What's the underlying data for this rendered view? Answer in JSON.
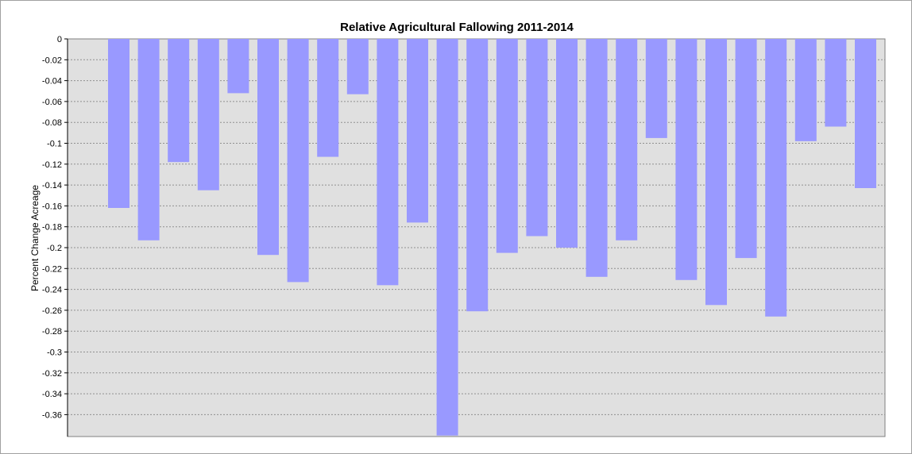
{
  "chart_data": {
    "type": "bar",
    "title": "Relative Agricultural Fallowing 2011-2014",
    "xlabel": "",
    "ylabel": "Percent Change Acreage",
    "ylim": [
      -0.38,
      0
    ],
    "yticks": [
      "0",
      "-0.02",
      "-0.04",
      "-0.06",
      "-0.08",
      "-0.1",
      "-0.12",
      "-0.14",
      "-0.16",
      "-0.18",
      "-0.2",
      "-0.22",
      "-0.24",
      "-0.26",
      "-0.28",
      "-0.3",
      "-0.32",
      "-0.34",
      "-0.36"
    ],
    "grid": true,
    "values": [
      -0.162,
      -0.193,
      -0.118,
      -0.145,
      -0.052,
      -0.207,
      -0.233,
      -0.113,
      -0.053,
      -0.236,
      -0.176,
      -0.38,
      -0.261,
      -0.205,
      -0.189,
      -0.2,
      -0.228,
      -0.193,
      -0.095,
      -0.231,
      -0.255,
      -0.21,
      -0.266,
      -0.098,
      -0.084,
      -0.143
    ],
    "bar_color": "#9999ff",
    "plot_background": "#e0e0e0"
  }
}
